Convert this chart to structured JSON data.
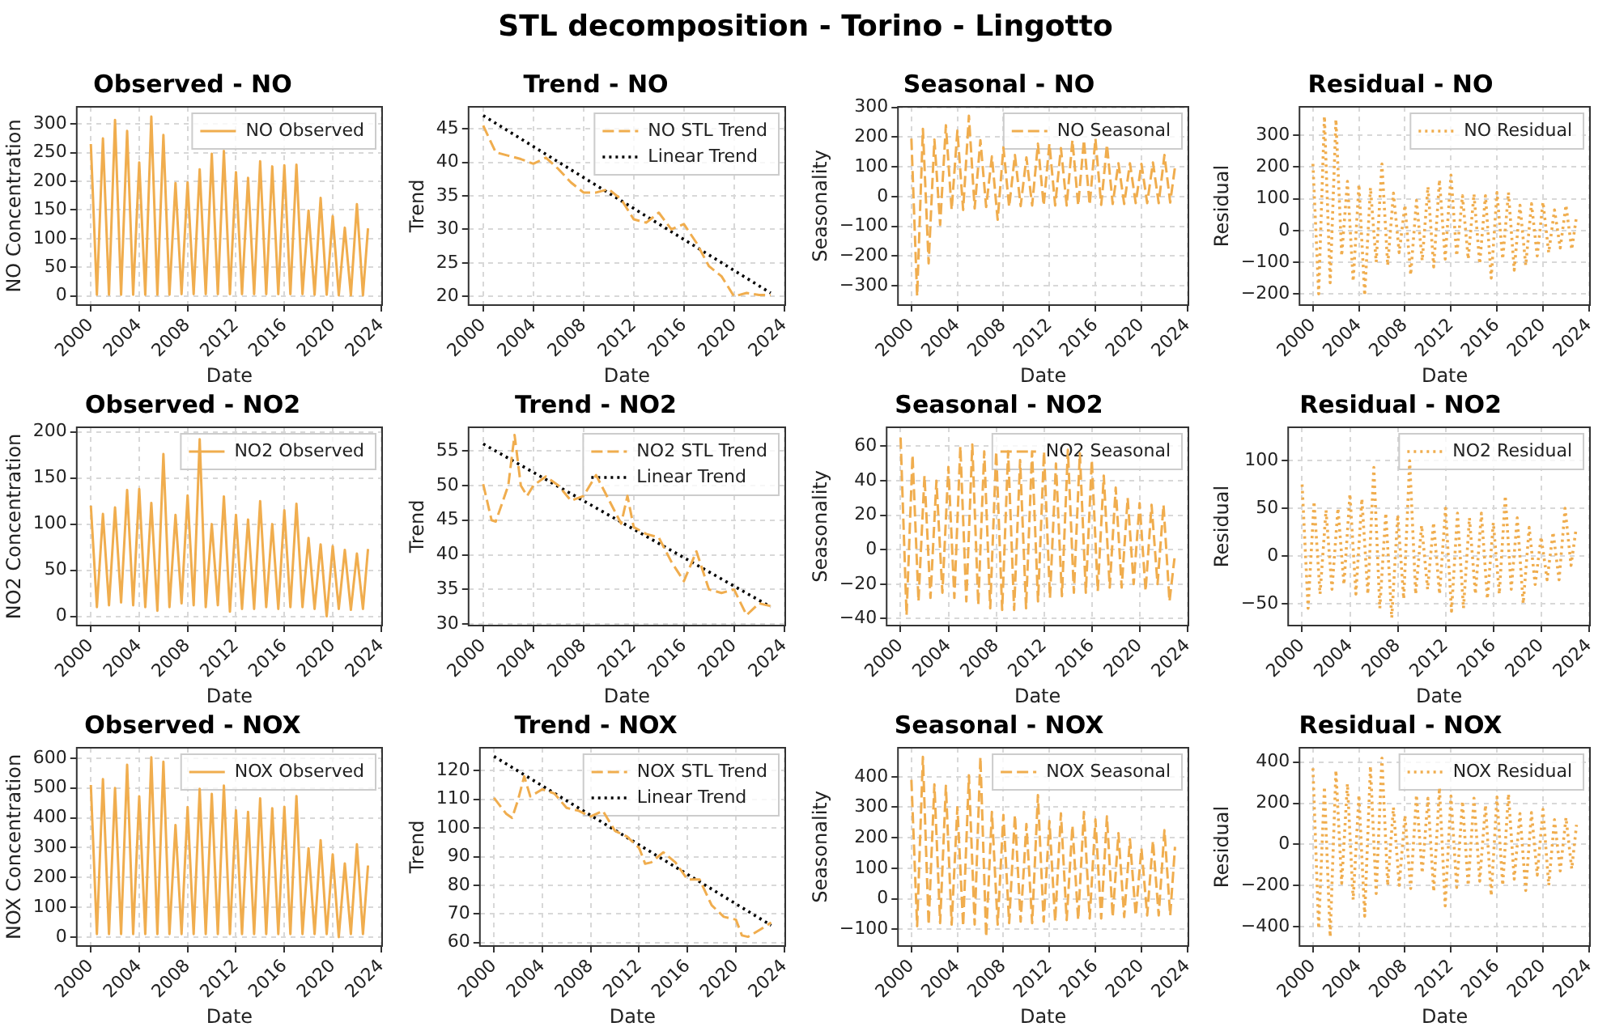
{
  "chart_data": [
    {
      "type": "other",
      "title": "STL decomposition - Torino - Lingotto"
    },
    {
      "type": "line",
      "title": "Observed - NO",
      "xlabel": "Date",
      "ylabel": "NO Concentration",
      "grid": true,
      "legend": "top right",
      "x": [
        "2000-01",
        "2000-07",
        "2001-01",
        "2001-07",
        "2002-01",
        "2002-07",
        "2003-01",
        "2003-07",
        "2004-01",
        "2004-07",
        "2005-01",
        "2005-07",
        "2006-01",
        "2006-07",
        "2007-01",
        "2007-07",
        "2008-01",
        "2008-07",
        "2009-01",
        "2009-07",
        "2010-01",
        "2010-07",
        "2011-01",
        "2011-07",
        "2012-01",
        "2012-07",
        "2013-01",
        "2013-07",
        "2014-01",
        "2014-07",
        "2015-01",
        "2015-07",
        "2016-01",
        "2016-07",
        "2017-01",
        "2017-07",
        "2018-01",
        "2018-07",
        "2019-01",
        "2019-07",
        "2020-01",
        "2020-07",
        "2021-01",
        "2021-07",
        "2022-01",
        "2022-07",
        "2022-12"
      ],
      "series": [
        {
          "name": "NO Observed",
          "color": "#f0ad4e",
          "line_style": "solid",
          "values": [
            265,
            2,
            275,
            2,
            307,
            2,
            288,
            2,
            233,
            2,
            313,
            2,
            281,
            2,
            197,
            3,
            198,
            3,
            221,
            3,
            248,
            3,
            253,
            3,
            216,
            3,
            206,
            3,
            235,
            3,
            226,
            3,
            228,
            3,
            229,
            3,
            149,
            2,
            171,
            2,
            139,
            1,
            119,
            1,
            160,
            1,
            118
          ]
        }
      ],
      "xlim": [
        "1998-11",
        "2024-02"
      ],
      "xticks": [
        "2000",
        "2004",
        "2008",
        "2012",
        "2016",
        "2020",
        "2024"
      ],
      "ylim": [
        -16,
        330
      ],
      "yticks": [
        0,
        50,
        100,
        150,
        200,
        250,
        300
      ]
    },
    {
      "type": "line",
      "title": "Trend - NO",
      "xlabel": "Date",
      "ylabel": "Trend",
      "grid": true,
      "legend": "top right",
      "series": [
        {
          "name": "NO STL Trend",
          "color": "#f0ad4e",
          "line_style": "dashed",
          "x": [
            "2000-01",
            "2001-01",
            "2002-01",
            "2003-01",
            "2004-01",
            "2005-01",
            "2006-01",
            "2007-01",
            "2008-01",
            "2009-01",
            "2010-01",
            "2011-01",
            "2012-01",
            "2013-01",
            "2014-01",
            "2015-01",
            "2016-01",
            "2017-01",
            "2018-01",
            "2019-01",
            "2020-01",
            "2021-01",
            "2022-01",
            "2022-12"
          ],
          "values": [
            45.5,
            41.5,
            41,
            40.5,
            39.8,
            40.7,
            39,
            37,
            35.5,
            35.5,
            36,
            34.5,
            31.5,
            31,
            32.5,
            30,
            30.8,
            28,
            24.5,
            23,
            20,
            20.5,
            20.2,
            20.2
          ]
        },
        {
          "name": "Linear Trend",
          "color": "#000000",
          "line_style": "dotted",
          "x": [
            "2000-01",
            "2022-12"
          ],
          "values": [
            47,
            20.5
          ]
        }
      ],
      "xlim": [
        "1998-11",
        "2024-02"
      ],
      "xticks": [
        "2000",
        "2004",
        "2008",
        "2012",
        "2016",
        "2020",
        "2024"
      ],
      "ylim": [
        18.7,
        48.3
      ],
      "yticks": [
        20,
        25,
        30,
        35,
        40,
        45
      ]
    },
    {
      "type": "line",
      "title": "Seasonal - NO",
      "xlabel": "Date",
      "ylabel": "Seasonality",
      "grid": true,
      "legend": "top right",
      "x": [
        "2000-01",
        "2000-07",
        "2001-01",
        "2001-07",
        "2002-01",
        "2002-07",
        "2003-01",
        "2003-07",
        "2004-01",
        "2004-07",
        "2005-01",
        "2005-07",
        "2006-01",
        "2006-07",
        "2007-01",
        "2007-07",
        "2008-01",
        "2008-07",
        "2009-01",
        "2009-07",
        "2010-01",
        "2010-07",
        "2011-01",
        "2011-07",
        "2012-01",
        "2012-07",
        "2013-01",
        "2013-07",
        "2014-01",
        "2014-07",
        "2015-01",
        "2015-07",
        "2016-01",
        "2016-07",
        "2017-01",
        "2017-07",
        "2018-01",
        "2018-07",
        "2019-01",
        "2019-07",
        "2020-01",
        "2020-07",
        "2021-01",
        "2021-07",
        "2022-01",
        "2022-07",
        "2022-12"
      ],
      "series": [
        {
          "name": "NO Seasonal",
          "color": "#f0ad4e",
          "line_style": "dashed",
          "values": [
            195,
            -335,
            228,
            -225,
            192,
            -95,
            240,
            -45,
            222,
            -45,
            272,
            -40,
            190,
            -35,
            135,
            -78,
            165,
            -35,
            140,
            -32,
            132,
            -30,
            178,
            -30,
            178,
            -30,
            163,
            -30,
            190,
            -30,
            190,
            -28,
            195,
            -28,
            175,
            -25,
            112,
            -25,
            112,
            -22,
            110,
            -22,
            115,
            -22,
            140,
            -20,
            100
          ]
        }
      ],
      "xlim": [
        "1998-11",
        "2024-02"
      ],
      "xticks": [
        "2000",
        "2004",
        "2008",
        "2012",
        "2016",
        "2020",
        "2024"
      ],
      "ylim": [
        -365,
        302
      ],
      "yticks": [
        {
          "value": -300,
          "label": "−300"
        },
        {
          "value": -200,
          "label": "−200"
        },
        {
          "value": -100,
          "label": "−100"
        },
        0,
        100,
        200,
        300
      ]
    },
    {
      "type": "line",
      "title": "Residual - NO",
      "xlabel": "Date",
      "ylabel": "Residual",
      "grid": true,
      "legend": "top right",
      "x": [
        "2000-01",
        "2000-07",
        "2001-01",
        "2001-07",
        "2002-01",
        "2002-07",
        "2003-01",
        "2003-07",
        "2004-01",
        "2004-07",
        "2005-01",
        "2005-07",
        "2006-01",
        "2006-07",
        "2007-01",
        "2007-07",
        "2008-01",
        "2008-07",
        "2009-01",
        "2009-07",
        "2010-01",
        "2010-07",
        "2011-01",
        "2011-07",
        "2012-01",
        "2012-07",
        "2013-01",
        "2013-07",
        "2014-01",
        "2014-07",
        "2015-01",
        "2015-07",
        "2016-01",
        "2016-07",
        "2017-01",
        "2017-07",
        "2018-01",
        "2018-07",
        "2019-01",
        "2019-07",
        "2020-01",
        "2020-07",
        "2021-01",
        "2021-07",
        "2022-01",
        "2022-07",
        "2022-12"
      ],
      "series": [
        {
          "name": "NO Residual",
          "color": "#f0ad4e",
          "line_style": "dotted",
          "values": [
            210,
            -200,
            360,
            -165,
            350,
            -80,
            155,
            -160,
            145,
            -205,
            135,
            -100,
            210,
            -110,
            118,
            -70,
            80,
            -140,
            95,
            -95,
            138,
            -115,
            160,
            -90,
            175,
            -80,
            110,
            -90,
            115,
            -105,
            110,
            -150,
            120,
            -90,
            120,
            -125,
            80,
            -110,
            85,
            -80,
            90,
            -70,
            65,
            -55,
            80,
            -60,
            45
          ]
        }
      ],
      "xlim": [
        "1998-11",
        "2024-02"
      ],
      "xticks": [
        "2000",
        "2004",
        "2008",
        "2012",
        "2016",
        "2020",
        "2024"
      ],
      "ylim": [
        -235,
        390
      ],
      "yticks": [
        {
          "value": -200,
          "label": "−200"
        },
        {
          "value": -100,
          "label": "−100"
        },
        0,
        100,
        200,
        300
      ]
    },
    {
      "type": "line",
      "title": "Observed - NO2",
      "xlabel": "Date",
      "ylabel": "NO2 Concentration",
      "grid": true,
      "legend": "top right",
      "x": [
        "2000-01",
        "2000-07",
        "2001-01",
        "2001-07",
        "2002-01",
        "2002-07",
        "2003-01",
        "2003-07",
        "2004-01",
        "2004-07",
        "2005-01",
        "2005-07",
        "2006-01",
        "2006-07",
        "2007-01",
        "2007-07",
        "2008-01",
        "2008-07",
        "2009-01",
        "2009-07",
        "2010-01",
        "2010-07",
        "2011-01",
        "2011-07",
        "2012-01",
        "2012-07",
        "2013-01",
        "2013-07",
        "2014-01",
        "2014-07",
        "2015-01",
        "2015-07",
        "2016-01",
        "2016-07",
        "2017-01",
        "2017-07",
        "2018-01",
        "2018-07",
        "2019-01",
        "2019-07",
        "2020-01",
        "2020-07",
        "2021-01",
        "2021-07",
        "2022-01",
        "2022-07",
        "2022-12"
      ],
      "series": [
        {
          "name": "NO2 Observed",
          "color": "#f0ad4e",
          "line_style": "solid",
          "values": [
            120,
            10,
            111,
            12,
            118,
            15,
            137,
            12,
            138,
            10,
            123,
            6,
            176,
            10,
            110,
            14,
            131,
            12,
            192,
            10,
            100,
            12,
            130,
            5,
            110,
            8,
            105,
            8,
            125,
            10,
            100,
            8,
            115,
            10,
            122,
            10,
            85,
            8,
            78,
            0,
            76,
            8,
            72,
            7,
            68,
            8,
            73
          ]
        }
      ],
      "xlim": [
        "1998-11",
        "2024-02"
      ],
      "xticks": [
        "2000",
        "2004",
        "2008",
        "2012",
        "2016",
        "2020",
        "2024"
      ],
      "ylim": [
        -10,
        205
      ],
      "yticks": [
        0,
        50,
        100,
        150,
        200
      ]
    },
    {
      "type": "line",
      "title": "Trend - NO2",
      "xlabel": "Date",
      "ylabel": "Trend",
      "grid": true,
      "legend": "top right",
      "series": [
        {
          "name": "NO2 STL Trend",
          "color": "#f0ad4e",
          "line_style": "dashed",
          "x": [
            "2000-01",
            "2000-09",
            "2001-01",
            "2002-01",
            "2002-07",
            "2003-01",
            "2003-07",
            "2004-01",
            "2005-01",
            "2006-01",
            "2007-01",
            "2008-01",
            "2009-01",
            "2010-01",
            "2011-01",
            "2011-07",
            "2012-01",
            "2013-01",
            "2014-01",
            "2015-01",
            "2016-01",
            "2017-01",
            "2018-01",
            "2019-01",
            "2020-01",
            "2021-01",
            "2022-01",
            "2022-12"
          ],
          "values": [
            50.2,
            45,
            44.8,
            50,
            57.3,
            50,
            48.5,
            50,
            51.3,
            50,
            47.8,
            48.5,
            51.5,
            48,
            44.5,
            48.5,
            44,
            43,
            42.5,
            39,
            36.2,
            40.5,
            35,
            34.5,
            35,
            31.3,
            33,
            32.6
          ]
        },
        {
          "name": "Linear Trend",
          "color": "#000000",
          "line_style": "dotted",
          "x": [
            "2000-01",
            "2022-12"
          ],
          "values": [
            56,
            32.5
          ]
        }
      ],
      "xlim": [
        "1998-11",
        "2024-02"
      ],
      "xticks": [
        "2000",
        "2004",
        "2008",
        "2012",
        "2016",
        "2020",
        "2024"
      ],
      "ylim": [
        29.8,
        58.4
      ],
      "yticks": [
        30,
        35,
        40,
        45,
        50,
        55
      ]
    },
    {
      "type": "line",
      "title": "Seasonal - NO2",
      "xlabel": "Date",
      "ylabel": "Seasonality",
      "grid": true,
      "legend": "top right",
      "x": [
        "2000-01",
        "2000-07",
        "2001-01",
        "2001-07",
        "2002-01",
        "2002-07",
        "2003-01",
        "2003-07",
        "2004-01",
        "2004-07",
        "2005-01",
        "2005-07",
        "2006-01",
        "2006-07",
        "2007-01",
        "2007-07",
        "2008-01",
        "2008-07",
        "2009-01",
        "2009-07",
        "2010-01",
        "2010-07",
        "2011-01",
        "2011-07",
        "2012-01",
        "2012-07",
        "2013-01",
        "2013-07",
        "2014-01",
        "2014-07",
        "2015-01",
        "2015-07",
        "2016-01",
        "2016-07",
        "2017-01",
        "2017-07",
        "2018-01",
        "2018-07",
        "2019-01",
        "2019-07",
        "2020-01",
        "2020-07",
        "2021-01",
        "2021-07",
        "2022-01",
        "2022-07",
        "2022-12"
      ],
      "series": [
        {
          "name": "NO2 Seasonal",
          "color": "#f0ad4e",
          "line_style": "dashed",
          "values": [
            65,
            -38,
            55,
            -30,
            43,
            -28,
            40,
            -25,
            48,
            -28,
            60,
            -30,
            61,
            -32,
            57,
            -34,
            57,
            -35,
            57,
            -35,
            52,
            -34,
            57,
            -30,
            57,
            -28,
            50,
            -27,
            58,
            -25,
            56,
            -25,
            52,
            -24,
            43,
            -22,
            36,
            -22,
            30,
            -20,
            27,
            -24,
            26,
            -20,
            26,
            -30,
            -5
          ]
        }
      ],
      "xlim": [
        "1998-11",
        "2024-02"
      ],
      "xticks": [
        "2000",
        "2004",
        "2008",
        "2012",
        "2016",
        "2020",
        "2024"
      ],
      "ylim": [
        -44,
        71
      ],
      "yticks": [
        {
          "value": -40,
          "label": "−40"
        },
        {
          "value": -20,
          "label": "−20"
        },
        0,
        20,
        40,
        60
      ]
    },
    {
      "type": "line",
      "title": "Residual - NO2",
      "xlabel": "Date",
      "ylabel": "Residual",
      "grid": true,
      "legend": "top right",
      "x": [
        "2000-01",
        "2000-07",
        "2001-01",
        "2001-07",
        "2002-01",
        "2002-07",
        "2003-01",
        "2003-07",
        "2004-01",
        "2004-07",
        "2005-01",
        "2005-07",
        "2006-01",
        "2006-07",
        "2007-01",
        "2007-07",
        "2008-01",
        "2008-07",
        "2009-01",
        "2009-07",
        "2010-01",
        "2010-07",
        "2011-01",
        "2011-07",
        "2012-01",
        "2012-07",
        "2013-01",
        "2013-07",
        "2014-01",
        "2014-07",
        "2015-01",
        "2015-07",
        "2016-01",
        "2016-07",
        "2017-01",
        "2017-07",
        "2018-01",
        "2018-07",
        "2019-01",
        "2019-07",
        "2020-01",
        "2020-07",
        "2021-01",
        "2021-07",
        "2022-01",
        "2022-07",
        "2022-12"
      ],
      "series": [
        {
          "name": "NO2 Residual",
          "color": "#f0ad4e",
          "line_style": "dotted",
          "values": [
            75,
            -55,
            57,
            -40,
            48,
            -35,
            50,
            -30,
            65,
            -40,
            60,
            -40,
            93,
            -55,
            45,
            -65,
            43,
            -45,
            100,
            -40,
            32,
            -35,
            35,
            -40,
            50,
            -58,
            45,
            -55,
            40,
            -40,
            45,
            -45,
            35,
            -40,
            63,
            -35,
            40,
            -50,
            30,
            -30,
            20,
            -25,
            25,
            -25,
            50,
            -10,
            28
          ]
        }
      ],
      "xlim": [
        "1998-11",
        "2024-02"
      ],
      "xticks": [
        "2000",
        "2004",
        "2008",
        "2012",
        "2016",
        "2020",
        "2024"
      ],
      "ylim": [
        -73,
        135
      ],
      "yticks": [
        {
          "value": -50,
          "label": "−50"
        },
        0,
        50,
        100
      ]
    },
    {
      "type": "line",
      "title": "Observed - NOX",
      "xlabel": "Date",
      "ylabel": "NOX Concentration",
      "grid": true,
      "legend": "top right",
      "x": [
        "2000-01",
        "2000-07",
        "2001-01",
        "2001-07",
        "2002-01",
        "2002-07",
        "2003-01",
        "2003-07",
        "2004-01",
        "2004-07",
        "2005-01",
        "2005-07",
        "2006-01",
        "2006-07",
        "2007-01",
        "2007-07",
        "2008-01",
        "2008-07",
        "2009-01",
        "2009-07",
        "2010-01",
        "2010-07",
        "2011-01",
        "2011-07",
        "2012-01",
        "2012-07",
        "2013-01",
        "2013-07",
        "2014-01",
        "2014-07",
        "2015-01",
        "2015-07",
        "2016-01",
        "2016-07",
        "2017-01",
        "2017-07",
        "2018-01",
        "2018-07",
        "2019-01",
        "2019-07",
        "2020-01",
        "2020-07",
        "2021-01",
        "2021-07",
        "2022-01",
        "2022-07",
        "2022-12"
      ],
      "series": [
        {
          "name": "NOX Observed",
          "color": "#f0ad4e",
          "line_style": "solid",
          "values": [
            510,
            10,
            530,
            10,
            500,
            10,
            578,
            10,
            472,
            10,
            603,
            10,
            588,
            10,
            376,
            10,
            436,
            10,
            497,
            10,
            480,
            10,
            508,
            10,
            425,
            10,
            420,
            10,
            465,
            10,
            432,
            10,
            437,
            10,
            473,
            10,
            298,
            10,
            325,
            10,
            277,
            0,
            247,
            10,
            311,
            10,
            240
          ]
        }
      ],
      "xlim": [
        "1998-11",
        "2024-02"
      ],
      "xticks": [
        "2000",
        "2004",
        "2008",
        "2012",
        "2016",
        "2020",
        "2024"
      ],
      "ylim": [
        -30,
        635
      ],
      "yticks": [
        0,
        100,
        200,
        300,
        400,
        500,
        600
      ]
    },
    {
      "type": "line",
      "title": "Trend - NOX",
      "xlabel": "Date",
      "ylabel": "Trend",
      "grid": true,
      "legend": "top right",
      "series": [
        {
          "name": "NOX STL Trend",
          "color": "#f0ad4e",
          "line_style": "dashed",
          "x": [
            "2000-01",
            "2001-01",
            "2001-07",
            "2002-01",
            "2002-07",
            "2003-01",
            "2004-01",
            "2005-01",
            "2006-01",
            "2007-01",
            "2008-01",
            "2009-01",
            "2010-01",
            "2011-01",
            "2012-01",
            "2012-07",
            "2013-01",
            "2014-01",
            "2015-01",
            "2016-01",
            "2017-01",
            "2018-01",
            "2019-01",
            "2020-01",
            "2020-07",
            "2021-01",
            "2022-01",
            "2022-12"
          ],
          "values": [
            110.5,
            105,
            103.5,
            110,
            118,
            111,
            113.5,
            112,
            107,
            106,
            104,
            106,
            99,
            97,
            93,
            87.5,
            88,
            91.5,
            88,
            82,
            82,
            73,
            69,
            68,
            62.5,
            62,
            64.5,
            67
          ]
        },
        {
          "name": "Linear Trend",
          "color": "#000000",
          "line_style": "dotted",
          "x": [
            "2000-01",
            "2022-12"
          ],
          "values": [
            125,
            66
          ]
        }
      ],
      "xlim": [
        "1998-11",
        "2024-02"
      ],
      "xticks": [
        "2000",
        "2004",
        "2008",
        "2012",
        "2016",
        "2020",
        "2024"
      ],
      "ylim": [
        58.8,
        128
      ],
      "yticks": [
        60,
        70,
        80,
        90,
        100,
        110,
        120
      ]
    },
    {
      "type": "line",
      "title": "Seasonal - NOX",
      "xlabel": "Date",
      "ylabel": "Seasonality",
      "grid": true,
      "legend": "top right",
      "x": [
        "2000-01",
        "2000-07",
        "2001-01",
        "2001-07",
        "2002-01",
        "2002-07",
        "2003-01",
        "2003-07",
        "2004-01",
        "2004-07",
        "2005-01",
        "2005-07",
        "2006-01",
        "2006-07",
        "2007-01",
        "2007-07",
        "2008-01",
        "2008-07",
        "2009-01",
        "2009-07",
        "2010-01",
        "2010-07",
        "2011-01",
        "2011-07",
        "2012-01",
        "2012-07",
        "2013-01",
        "2013-07",
        "2014-01",
        "2014-07",
        "2015-01",
        "2015-07",
        "2016-01",
        "2016-07",
        "2017-01",
        "2017-07",
        "2018-01",
        "2018-07",
        "2019-01",
        "2019-07",
        "2020-01",
        "2020-07",
        "2021-01",
        "2021-07",
        "2022-01",
        "2022-07",
        "2022-12"
      ],
      "series": [
        {
          "name": "NOX Seasonal",
          "color": "#f0ad4e",
          "line_style": "dashed",
          "values": [
            390,
            -90,
            465,
            -85,
            375,
            -80,
            370,
            -85,
            300,
            -90,
            405,
            -85,
            465,
            -125,
            285,
            -85,
            275,
            -80,
            275,
            -75,
            245,
            -80,
            340,
            -75,
            255,
            -75,
            280,
            -70,
            240,
            -70,
            285,
            -65,
            260,
            -65,
            270,
            -60,
            215,
            -60,
            195,
            -55,
            165,
            -55,
            190,
            -55,
            225,
            -55,
            170
          ]
        }
      ],
      "xlim": [
        "1998-11",
        "2024-02"
      ],
      "xticks": [
        "2000",
        "2004",
        "2008",
        "2012",
        "2016",
        "2020",
        "2024"
      ],
      "ylim": [
        -155,
        495
      ],
      "yticks": [
        {
          "value": -100,
          "label": "−100"
        },
        0,
        100,
        200,
        300,
        400
      ]
    },
    {
      "type": "line",
      "title": "Residual - NOX",
      "xlabel": "Date",
      "ylabel": "Residual",
      "grid": true,
      "legend": "top right",
      "x": [
        "2000-01",
        "2000-07",
        "2001-01",
        "2001-07",
        "2002-01",
        "2002-07",
        "2003-01",
        "2003-07",
        "2004-01",
        "2004-07",
        "2005-01",
        "2005-07",
        "2006-01",
        "2006-07",
        "2007-01",
        "2007-07",
        "2008-01",
        "2008-07",
        "2009-01",
        "2009-07",
        "2010-01",
        "2010-07",
        "2011-01",
        "2011-07",
        "2012-01",
        "2012-07",
        "2013-01",
        "2013-07",
        "2014-01",
        "2014-07",
        "2015-01",
        "2015-07",
        "2016-01",
        "2016-07",
        "2017-01",
        "2017-07",
        "2018-01",
        "2018-07",
        "2019-01",
        "2019-07",
        "2020-01",
        "2020-07",
        "2021-01",
        "2021-07",
        "2022-01",
        "2022-07",
        "2022-12"
      ],
      "series": [
        {
          "name": "NOX Residual",
          "color": "#f0ad4e",
          "line_style": "dotted",
          "values": [
            370,
            -410,
            280,
            -450,
            360,
            -190,
            295,
            -270,
            240,
            -350,
            380,
            -240,
            420,
            -200,
            180,
            -200,
            140,
            -215,
            240,
            -140,
            225,
            -230,
            275,
            -300,
            235,
            -210,
            210,
            -200,
            225,
            -180,
            190,
            -250,
            230,
            -200,
            245,
            -170,
            150,
            -225,
            155,
            -150,
            170,
            -200,
            120,
            -130,
            130,
            -120,
            95
          ]
        }
      ],
      "xlim": [
        "1998-11",
        "2024-02"
      ],
      "xticks": [
        "2000",
        "2004",
        "2008",
        "2012",
        "2016",
        "2020",
        "2024"
      ],
      "ylim": [
        -495,
        470
      ],
      "yticks": [
        {
          "value": -400,
          "label": "−400"
        },
        {
          "value": -200,
          "label": "−200"
        },
        0,
        200,
        400
      ]
    }
  ]
}
